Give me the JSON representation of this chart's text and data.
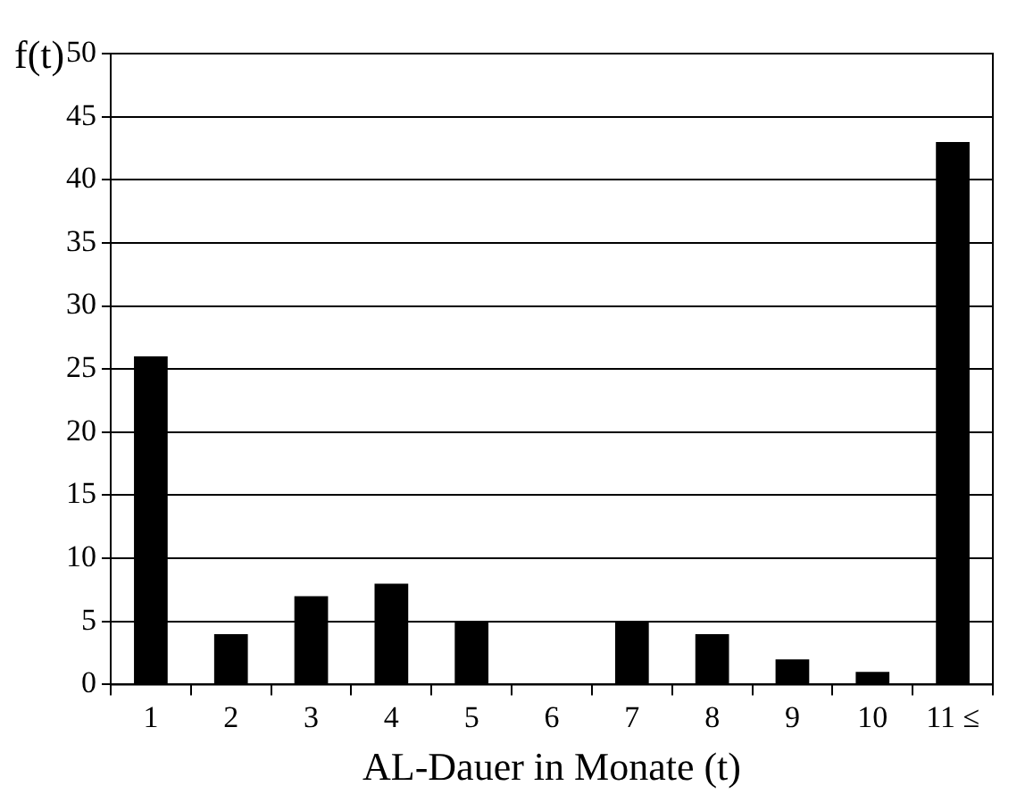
{
  "chart_data": {
    "type": "bar",
    "xlabel": "AL-Dauer in Monate (t)",
    "ylabel": "f(t)",
    "categories": [
      "1",
      "2",
      "3",
      "4",
      "5",
      "6",
      "7",
      "8",
      "9",
      "10",
      "11 ≤"
    ],
    "values": [
      26,
      4,
      7,
      8,
      5,
      0,
      5,
      4,
      2,
      1,
      43
    ],
    "color": "#000000",
    "ylim": [
      0,
      50
    ],
    "yticks": [
      0,
      5,
      10,
      15,
      20,
      25,
      30,
      35,
      40,
      45,
      50
    ],
    "grid": "y",
    "legend": false
  }
}
